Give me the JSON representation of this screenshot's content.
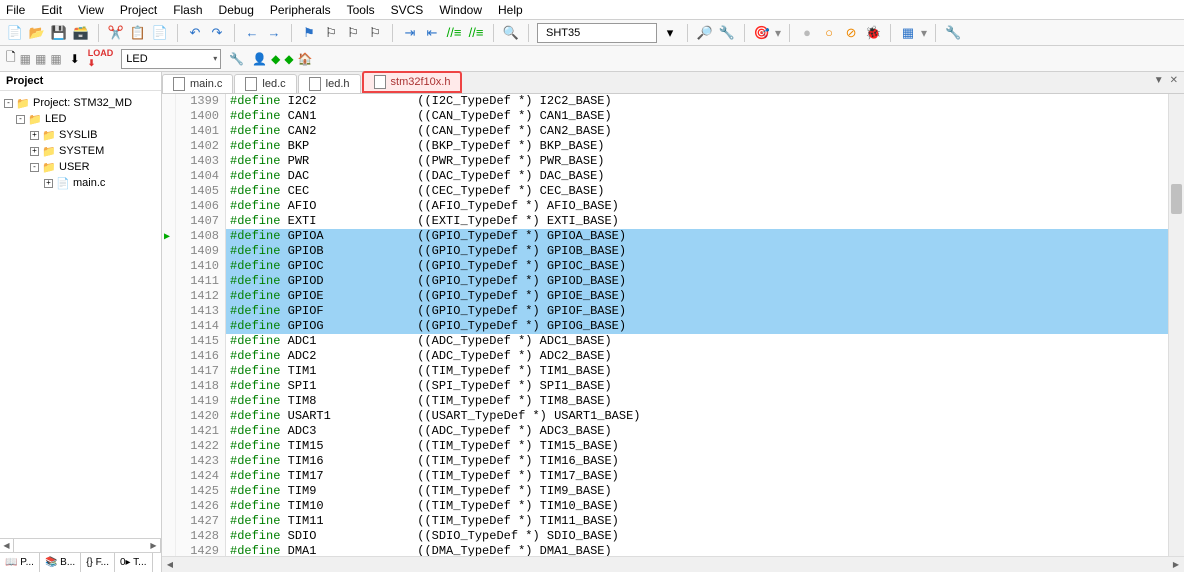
{
  "menu": [
    "File",
    "Edit",
    "View",
    "Project",
    "Flash",
    "Debug",
    "Peripherals",
    "Tools",
    "SVCS",
    "Window",
    "Help"
  ],
  "toolbar2": {
    "target": "SHT35",
    "combo": "LED"
  },
  "sidebar": {
    "title": "Project",
    "tree": [
      {
        "t": "Project: STM32_MD",
        "lvl": 0,
        "exp": "-",
        "icon": "📁",
        "iconColor": "#5a8"
      },
      {
        "t": "LED",
        "lvl": 1,
        "exp": "-",
        "icon": "📁",
        "iconColor": "#e6c04a"
      },
      {
        "t": "SYSLIB",
        "lvl": 2,
        "exp": "+",
        "icon": "📁",
        "iconColor": "#e6c04a"
      },
      {
        "t": "SYSTEM",
        "lvl": 2,
        "exp": "+",
        "icon": "📁",
        "iconColor": "#e6c04a"
      },
      {
        "t": "USER",
        "lvl": 2,
        "exp": "-",
        "icon": "📁",
        "iconColor": "#e6c04a"
      },
      {
        "t": "main.c",
        "lvl": 3,
        "exp": "+",
        "icon": "📄",
        "iconColor": "#888"
      }
    ],
    "tabs": [
      "📖 P...",
      "📚 B...",
      "{} F...",
      "0▸ T..."
    ]
  },
  "editorTabs": [
    {
      "label": "main.c",
      "active": false
    },
    {
      "label": "led.c",
      "active": false
    },
    {
      "label": "led.h",
      "active": false
    },
    {
      "label": "stm32f10x.h",
      "active": true
    }
  ],
  "code": {
    "start": 1399,
    "hlRows": [
      1408,
      1409,
      1410,
      1411,
      1412,
      1413,
      1414
    ],
    "hlGreen": 1414,
    "pinRow": 1408,
    "lines": [
      {
        "d": "I2C2",
        "c": "((I2C_TypeDef *) I2C2_BASE)"
      },
      {
        "d": "CAN1",
        "c": "((CAN_TypeDef *) CAN1_BASE)"
      },
      {
        "d": "CAN2",
        "c": "((CAN_TypeDef *) CAN2_BASE)"
      },
      {
        "d": "BKP",
        "c": "((BKP_TypeDef *) BKP_BASE)"
      },
      {
        "d": "PWR",
        "c": "((PWR_TypeDef *) PWR_BASE)"
      },
      {
        "d": "DAC",
        "c": "((DAC_TypeDef *) DAC_BASE)"
      },
      {
        "d": "CEC",
        "c": "((CEC_TypeDef *) CEC_BASE)"
      },
      {
        "d": "AFIO",
        "c": "((AFIO_TypeDef *) AFIO_BASE)"
      },
      {
        "d": "EXTI",
        "c": "((EXTI_TypeDef *) EXTI_BASE)"
      },
      {
        "d": "GPIOA",
        "c": "((GPIO_TypeDef *) GPIOA_BASE)"
      },
      {
        "d": "GPIOB",
        "c": "((GPIO_TypeDef *) GPIOB_BASE)"
      },
      {
        "d": "GPIOC",
        "c": "((GPIO_TypeDef *) GPIOC_BASE)"
      },
      {
        "d": "GPIOD",
        "c": "((GPIO_TypeDef *) GPIOD_BASE)"
      },
      {
        "d": "GPIOE",
        "c": "((GPIO_TypeDef *) GPIOE_BASE)"
      },
      {
        "d": "GPIOF",
        "c": "((GPIO_TypeDef *) GPIOF_BASE)"
      },
      {
        "d": "GPIOG",
        "c": "((GPIO_TypeDef *) GPIOG_BASE)"
      },
      {
        "d": "ADC1",
        "c": "((ADC_TypeDef *) ADC1_BASE)"
      },
      {
        "d": "ADC2",
        "c": "((ADC_TypeDef *) ADC2_BASE)"
      },
      {
        "d": "TIM1",
        "c": "((TIM_TypeDef *) TIM1_BASE)"
      },
      {
        "d": "SPI1",
        "c": "((SPI_TypeDef *) SPI1_BASE)"
      },
      {
        "d": "TIM8",
        "c": "((TIM_TypeDef *) TIM8_BASE)"
      },
      {
        "d": "USART1",
        "c": "((USART_TypeDef *) USART1_BASE)"
      },
      {
        "d": "ADC3",
        "c": "((ADC_TypeDef *) ADC3_BASE)"
      },
      {
        "d": "TIM15",
        "c": "((TIM_TypeDef *) TIM15_BASE)"
      },
      {
        "d": "TIM16",
        "c": "((TIM_TypeDef *) TIM16_BASE)"
      },
      {
        "d": "TIM17",
        "c": "((TIM_TypeDef *) TIM17_BASE)"
      },
      {
        "d": "TIM9",
        "c": "((TIM_TypeDef *) TIM9_BASE)"
      },
      {
        "d": "TIM10",
        "c": "((TIM_TypeDef *) TIM10_BASE)"
      },
      {
        "d": "TIM11",
        "c": "((TIM_TypeDef *) TIM11_BASE)"
      },
      {
        "d": "SDIO",
        "c": "((SDIO_TypeDef *) SDIO_BASE)"
      },
      {
        "d": "DMA1",
        "c": "((DMA_TypeDef *) DMA1_BASE)"
      }
    ]
  },
  "colors": {
    "highlight": "#9cd3f5",
    "keyword": "#008000",
    "gutter": "#888888"
  }
}
